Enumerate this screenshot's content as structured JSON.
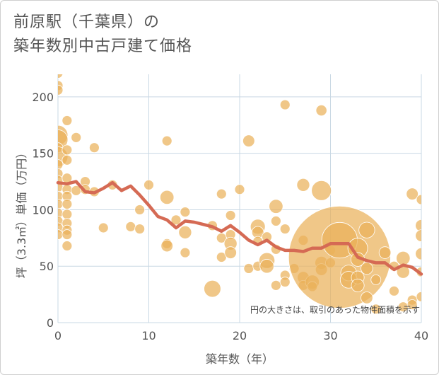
{
  "title_line1": "前原駅（千葉県）の",
  "title_line2": "築年数別中古戸建て価格",
  "chart_data": {
    "type": "scatter",
    "xlabel": "築年数（年）",
    "ylabel": "坪（3.3㎡）単価（万円）",
    "xlim": [
      0,
      40
    ],
    "ylim": [
      0,
      220
    ],
    "x_ticks": [
      "0",
      "10",
      "20",
      "30",
      "40"
    ],
    "y_ticks": [
      "0",
      "50",
      "100",
      "150",
      "200"
    ],
    "grid": true,
    "annotation": "円の大きさは、取引のあった物件面積を示す",
    "colors": {
      "bubble": "#eab15a",
      "line": "#d56a54",
      "grid": "#c9d8e4"
    },
    "bubble_series": {
      "points": [
        {
          "x": 0,
          "y": 226,
          "s": 1
        },
        {
          "x": 0,
          "y": 221,
          "s": 1
        },
        {
          "x": 0,
          "y": 210,
          "s": 1
        },
        {
          "x": 0,
          "y": 206,
          "s": 1
        },
        {
          "x": 0,
          "y": 166,
          "s": 2
        },
        {
          "x": 0,
          "y": 162,
          "s": 2
        },
        {
          "x": 0,
          "y": 155,
          "s": 1
        },
        {
          "x": 0,
          "y": 147,
          "s": 2
        },
        {
          "x": 0,
          "y": 140,
          "s": 1
        },
        {
          "x": 0,
          "y": 132,
          "s": 1
        },
        {
          "x": 0,
          "y": 126,
          "s": 1
        },
        {
          "x": 0,
          "y": 120,
          "s": 1
        },
        {
          "x": 0,
          "y": 112,
          "s": 1
        },
        {
          "x": 0,
          "y": 105,
          "s": 1
        },
        {
          "x": 0,
          "y": 97,
          "s": 1
        },
        {
          "x": 0,
          "y": 90,
          "s": 1
        },
        {
          "x": 0,
          "y": 84,
          "s": 1
        },
        {
          "x": 0,
          "y": 78,
          "s": 1
        },
        {
          "x": 1,
          "y": 179,
          "s": 1
        },
        {
          "x": 1,
          "y": 153,
          "s": 1
        },
        {
          "x": 1,
          "y": 144,
          "s": 1
        },
        {
          "x": 1,
          "y": 128,
          "s": 1
        },
        {
          "x": 1,
          "y": 118,
          "s": 1
        },
        {
          "x": 1,
          "y": 112,
          "s": 1
        },
        {
          "x": 1,
          "y": 105,
          "s": 1
        },
        {
          "x": 1,
          "y": 96,
          "s": 1
        },
        {
          "x": 1,
          "y": 88,
          "s": 1
        },
        {
          "x": 1,
          "y": 82,
          "s": 1
        },
        {
          "x": 1,
          "y": 78,
          "s": 1
        },
        {
          "x": 1,
          "y": 68,
          "s": 1
        },
        {
          "x": 2,
          "y": 164,
          "s": 1
        },
        {
          "x": 2,
          "y": 117,
          "s": 1
        },
        {
          "x": 3,
          "y": 125,
          "s": 1
        },
        {
          "x": 3,
          "y": 118,
          "s": 1
        },
        {
          "x": 4,
          "y": 155,
          "s": 1
        },
        {
          "x": 4,
          "y": 116,
          "s": 1
        },
        {
          "x": 5,
          "y": 84,
          "s": 1
        },
        {
          "x": 6,
          "y": 122,
          "s": 1
        },
        {
          "x": 8,
          "y": 85,
          "s": 1
        },
        {
          "x": 9,
          "y": 83,
          "s": 1
        },
        {
          "x": 9,
          "y": 100,
          "s": 1
        },
        {
          "x": 10,
          "y": 122,
          "s": 1
        },
        {
          "x": 12,
          "y": 161,
          "s": 1
        },
        {
          "x": 12,
          "y": 111,
          "s": 1.4
        },
        {
          "x": 12,
          "y": 70,
          "s": 1
        },
        {
          "x": 12,
          "y": 68,
          "s": 1.2
        },
        {
          "x": 13,
          "y": 91,
          "s": 1
        },
        {
          "x": 14,
          "y": 98,
          "s": 1
        },
        {
          "x": 14,
          "y": 80,
          "s": 1.3
        },
        {
          "x": 14,
          "y": 62,
          "s": 1
        },
        {
          "x": 17,
          "y": 86,
          "s": 1
        },
        {
          "x": 17,
          "y": 30,
          "s": 1.7
        },
        {
          "x": 18,
          "y": 114,
          "s": 1
        },
        {
          "x": 18,
          "y": 75,
          "s": 1
        },
        {
          "x": 18,
          "y": 58,
          "s": 1
        },
        {
          "x": 19,
          "y": 95,
          "s": 1
        },
        {
          "x": 19,
          "y": 78,
          "s": 1
        },
        {
          "x": 19,
          "y": 70,
          "s": 1.3
        },
        {
          "x": 19,
          "y": 62,
          "s": 1.2
        },
        {
          "x": 20,
          "y": 118,
          "s": 1
        },
        {
          "x": 21,
          "y": 161,
          "s": 1.2
        },
        {
          "x": 21,
          "y": 48,
          "s": 1
        },
        {
          "x": 22,
          "y": 85,
          "s": 1.5
        },
        {
          "x": 22,
          "y": 80,
          "s": 1.2
        },
        {
          "x": 22,
          "y": 72,
          "s": 1
        },
        {
          "x": 22,
          "y": 50,
          "s": 1
        },
        {
          "x": 23,
          "y": 76,
          "s": 1
        },
        {
          "x": 23,
          "y": 55,
          "s": 1.6
        },
        {
          "x": 23,
          "y": 50,
          "s": 1.4
        },
        {
          "x": 24,
          "y": 103,
          "s": 1.4
        },
        {
          "x": 24,
          "y": 90,
          "s": 1
        },
        {
          "x": 24,
          "y": 65,
          "s": 1
        },
        {
          "x": 24,
          "y": 33,
          "s": 1
        },
        {
          "x": 25,
          "y": 193,
          "s": 1
        },
        {
          "x": 25,
          "y": 83,
          "s": 1
        },
        {
          "x": 25,
          "y": 42,
          "s": 1
        },
        {
          "x": 25,
          "y": 36,
          "s": 1
        },
        {
          "x": 26,
          "y": 48,
          "s": 1
        },
        {
          "x": 27,
          "y": 122,
          "s": 1.3
        },
        {
          "x": 27,
          "y": 73,
          "s": 1
        },
        {
          "x": 27,
          "y": 40,
          "s": 1.2
        },
        {
          "x": 27,
          "y": 33,
          "s": 1
        },
        {
          "x": 28,
          "y": 36,
          "s": 1.4
        },
        {
          "x": 28,
          "y": 32,
          "s": 1
        },
        {
          "x": 29,
          "y": 188,
          "s": 1.1
        },
        {
          "x": 29,
          "y": 117,
          "s": 2
        },
        {
          "x": 29,
          "y": 53,
          "s": 1.3
        },
        {
          "x": 29,
          "y": 47,
          "s": 1.2
        },
        {
          "x": 30,
          "y": 64,
          "s": 1
        },
        {
          "x": 30,
          "y": 53,
          "s": 1
        },
        {
          "x": 31,
          "y": 58,
          "s": 10.3
        },
        {
          "x": 31,
          "y": 73,
          "s": 3.6
        },
        {
          "x": 32,
          "y": 44,
          "s": 1.6
        },
        {
          "x": 32,
          "y": 38,
          "s": 1.7
        },
        {
          "x": 33,
          "y": 66,
          "s": 2
        },
        {
          "x": 33,
          "y": 56,
          "s": 1.4
        },
        {
          "x": 33,
          "y": 40,
          "s": 1.3
        },
        {
          "x": 33,
          "y": 33,
          "s": 1.3
        },
        {
          "x": 34,
          "y": 82,
          "s": 1.6
        },
        {
          "x": 34,
          "y": 48,
          "s": 1.2
        },
        {
          "x": 34,
          "y": 22,
          "s": 1.2
        },
        {
          "x": 35,
          "y": 38,
          "s": 1
        },
        {
          "x": 35,
          "y": 12,
          "s": 1
        },
        {
          "x": 36,
          "y": 62,
          "s": 1.2
        },
        {
          "x": 37,
          "y": 50,
          "s": 1
        },
        {
          "x": 37,
          "y": 28,
          "s": 1
        },
        {
          "x": 38,
          "y": 57,
          "s": 1.4
        },
        {
          "x": 38,
          "y": 45,
          "s": 1.3
        },
        {
          "x": 38,
          "y": 14,
          "s": 1
        },
        {
          "x": 39,
          "y": 114,
          "s": 1.2
        },
        {
          "x": 39,
          "y": 20,
          "s": 1
        },
        {
          "x": 39,
          "y": 16,
          "s": 1
        },
        {
          "x": 40,
          "y": 109,
          "s": 1
        },
        {
          "x": 40,
          "y": 86,
          "s": 1.2
        },
        {
          "x": 40,
          "y": 77,
          "s": 1.2
        },
        {
          "x": 40,
          "y": 61,
          "s": 1.2
        },
        {
          "x": 40,
          "y": 23,
          "s": 1
        },
        {
          "x": 40,
          "y": 45,
          "s": 1
        }
      ]
    },
    "line_series": {
      "points": [
        [
          0,
          124
        ],
        [
          1,
          123
        ],
        [
          2,
          125
        ],
        [
          3,
          116
        ],
        [
          4,
          115
        ],
        [
          5,
          119
        ],
        [
          6,
          124
        ],
        [
          7,
          117
        ],
        [
          8,
          121
        ],
        [
          9,
          113
        ],
        [
          10,
          104
        ],
        [
          11,
          94
        ],
        [
          12,
          91
        ],
        [
          13,
          84
        ],
        [
          14,
          90
        ],
        [
          15,
          89
        ],
        [
          16,
          87
        ],
        [
          17,
          85
        ],
        [
          18,
          81
        ],
        [
          19,
          86
        ],
        [
          20,
          80
        ],
        [
          21,
          73
        ],
        [
          22,
          69
        ],
        [
          23,
          73
        ],
        [
          24,
          67
        ],
        [
          25,
          64
        ],
        [
          26,
          64
        ],
        [
          27,
          63
        ],
        [
          28,
          66
        ],
        [
          29,
          66
        ],
        [
          30,
          70
        ],
        [
          31,
          70
        ],
        [
          32,
          70
        ],
        [
          33,
          58
        ],
        [
          34,
          55
        ],
        [
          35,
          53
        ],
        [
          36,
          53
        ],
        [
          37,
          47
        ],
        [
          38,
          51
        ],
        [
          39,
          49
        ],
        [
          40,
          43
        ]
      ]
    }
  }
}
